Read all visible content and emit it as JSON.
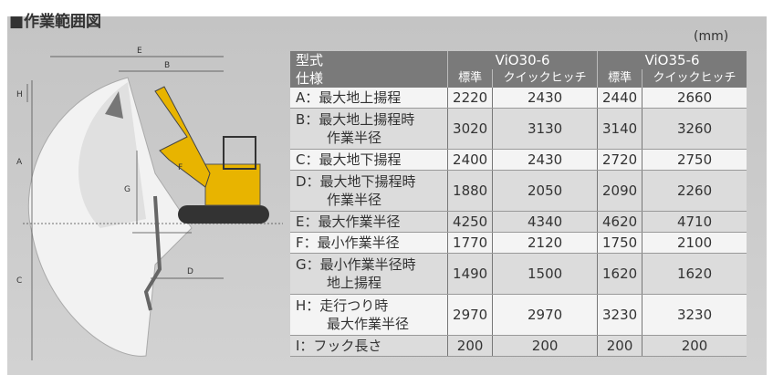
{
  "header": {
    "title": "■作業範囲図"
  },
  "table": {
    "unit": "(mm)",
    "model_header": "型式",
    "models": [
      "ViO30-6",
      "ViO35-6"
    ],
    "spec_header": "仕様",
    "sub_headers": [
      "標準",
      "クイックヒッチ",
      "標準",
      "クイックヒッチ"
    ],
    "rows": [
      {
        "label": [
          "A：最大地上揚程"
        ],
        "values": [
          2220,
          2430,
          2440,
          2660
        ]
      },
      {
        "label": [
          "B：最大地上揚程時",
          "作業半径"
        ],
        "values": [
          3020,
          3130,
          3140,
          3260
        ]
      },
      {
        "label": [
          "C：最大地下揚程"
        ],
        "values": [
          2400,
          2430,
          2720,
          2750
        ]
      },
      {
        "label": [
          "D：最大地下揚程時",
          "作業半径"
        ],
        "values": [
          1880,
          2050,
          2090,
          2260
        ]
      },
      {
        "label": [
          "E：最大作業半径"
        ],
        "values": [
          4250,
          4340,
          4620,
          4710
        ]
      },
      {
        "label": [
          "F：最小作業半径"
        ],
        "values": [
          1770,
          2120,
          1750,
          2100
        ]
      },
      {
        "label": [
          "G：最小作業半径時",
          "地上揚程"
        ],
        "values": [
          1490,
          1500,
          1620,
          1620
        ]
      },
      {
        "label": [
          "H：走行つり時",
          "最大作業半径"
        ],
        "values": [
          2970,
          2970,
          3230,
          3230
        ]
      },
      {
        "label": [
          "I：フック長さ"
        ],
        "values": [
          200,
          200,
          200,
          200
        ]
      }
    ]
  },
  "diagram": {
    "labels": [
      "E",
      "B",
      "H",
      "A",
      "F",
      "G",
      "C",
      "D"
    ]
  }
}
